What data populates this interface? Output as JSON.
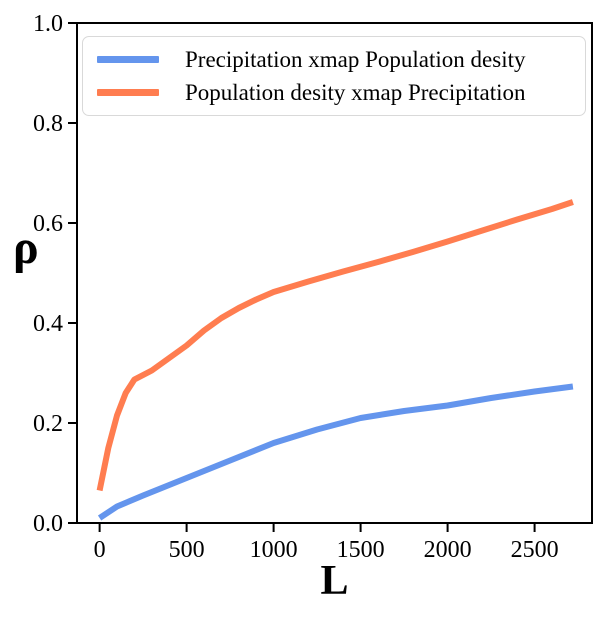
{
  "figure": {
    "background": "#ffffff",
    "axis_color": "#000000"
  },
  "chart_data": {
    "type": "line",
    "title": "",
    "xlabel": "L",
    "ylabel": "ρ",
    "xlim": [
      -130,
      2830
    ],
    "ylim": [
      0.0,
      1.0
    ],
    "x_ticks": [
      "0",
      "500",
      "1000",
      "1500",
      "2000",
      "2500"
    ],
    "x_tick_values": [
      0,
      500,
      1000,
      1500,
      2000,
      2500
    ],
    "y_ticks": [
      "0.0",
      "0.2",
      "0.4",
      "0.6",
      "0.8",
      "1.0"
    ],
    "y_tick_values": [
      0.0,
      0.2,
      0.4,
      0.6,
      0.8,
      1.0
    ],
    "grid": false,
    "legend_position": "upper left",
    "series": [
      {
        "name": "Precipitation xmap Population desity",
        "color": "#6495ED",
        "line_width": 6,
        "x": [
          0,
          100,
          250,
          500,
          750,
          1000,
          1250,
          1500,
          1750,
          2000,
          2250,
          2500,
          2720
        ],
        "y": [
          0.01,
          0.033,
          0.055,
          0.09,
          0.125,
          0.16,
          0.187,
          0.21,
          0.224,
          0.235,
          0.25,
          0.263,
          0.273
        ]
      },
      {
        "name": "Population desity xmap Precipitation",
        "color": "#FF7D50",
        "line_width": 6,
        "x": [
          0,
          50,
          100,
          150,
          200,
          300,
          400,
          500,
          600,
          700,
          800,
          900,
          1000,
          1200,
          1400,
          1600,
          1800,
          2000,
          2200,
          2400,
          2600,
          2720
        ],
        "y": [
          0.065,
          0.15,
          0.215,
          0.26,
          0.287,
          0.305,
          0.33,
          0.355,
          0.385,
          0.41,
          0.43,
          0.447,
          0.462,
          0.483,
          0.503,
          0.522,
          0.542,
          0.563,
          0.585,
          0.607,
          0.628,
          0.642
        ]
      }
    ]
  }
}
